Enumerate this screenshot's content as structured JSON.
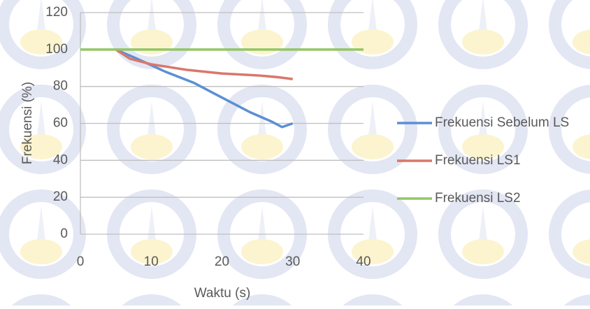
{
  "chart_data": {
    "type": "line",
    "x_label": "Waktu (s)",
    "y_label": "Frekuensi (%)",
    "xlim": [
      0,
      40
    ],
    "xticks": [
      0,
      10,
      20,
      30,
      40
    ],
    "ylim": [
      0,
      120
    ],
    "yticks": [
      0,
      20,
      40,
      60,
      80,
      100,
      120
    ],
    "grid": true,
    "legend": "right",
    "series": [
      {
        "name": "Frekuensi Sebelum LS",
        "color": "#5b8fd4",
        "x": [
          5,
          8,
          12,
          16,
          20,
          24,
          27,
          28.5,
          30
        ],
        "values": [
          100,
          95,
          88,
          82,
          74,
          66,
          61,
          58,
          60
        ]
      },
      {
        "name": "Frekuensi LS1",
        "color": "#d9776b",
        "x": [
          5,
          7,
          10,
          15,
          20,
          25,
          28,
          30
        ],
        "values": [
          100,
          95,
          92,
          89,
          87,
          86,
          85,
          84
        ]
      },
      {
        "name": "Frekuensi LS2",
        "color": "#93c664",
        "x": [
          0,
          5,
          40
        ],
        "values": [
          100,
          100,
          100
        ]
      }
    ]
  }
}
